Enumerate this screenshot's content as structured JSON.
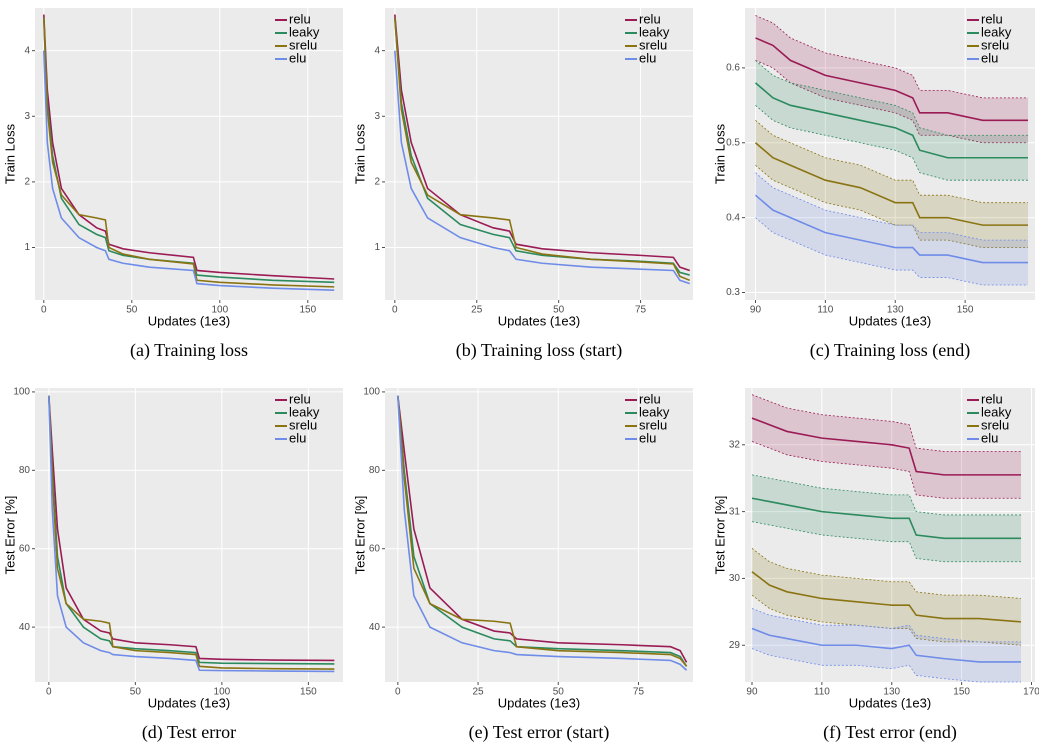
{
  "chart_data": [
    {
      "type": "line",
      "caption": "(a) Training loss",
      "xlabel": "Updates (1e3)",
      "ylabel": "Train Loss",
      "grid": true,
      "legend": "top-right",
      "x": [
        0,
        2,
        5,
        10,
        20,
        30,
        35,
        37,
        45,
        60,
        85,
        87,
        100,
        130,
        165
      ],
      "xlim": [
        -5,
        170
      ],
      "xticks": [
        0,
        50,
        100,
        150
      ],
      "ylim": [
        0.2,
        4.65
      ],
      "yticks": [
        1,
        2,
        3,
        4
      ],
      "series": [
        {
          "name": "relu",
          "color": "#9b1b55",
          "values": [
            4.55,
            3.4,
            2.6,
            1.9,
            1.5,
            1.3,
            1.25,
            1.05,
            0.98,
            0.92,
            0.85,
            0.65,
            0.62,
            0.57,
            0.52
          ]
        },
        {
          "name": "leaky",
          "color": "#2b8a5e",
          "values": [
            4.5,
            3.2,
            2.4,
            1.75,
            1.35,
            1.2,
            1.15,
            0.95,
            0.88,
            0.82,
            0.76,
            0.58,
            0.55,
            0.5,
            0.47
          ]
        },
        {
          "name": "srelu",
          "color": "#8a7412",
          "values": [
            4.5,
            3.1,
            2.3,
            1.8,
            1.5,
            1.45,
            1.42,
            1.0,
            0.9,
            0.82,
            0.75,
            0.5,
            0.47,
            0.43,
            0.4
          ]
        },
        {
          "name": "elu",
          "color": "#6e8ce8",
          "values": [
            4.0,
            2.6,
            1.9,
            1.45,
            1.15,
            1.0,
            0.95,
            0.82,
            0.76,
            0.7,
            0.65,
            0.45,
            0.42,
            0.38,
            0.35
          ]
        }
      ]
    },
    {
      "type": "line",
      "caption": "(b) Training loss (start)",
      "xlabel": "Updates (1e3)",
      "ylabel": "Train Loss",
      "grid": true,
      "legend": "top-right",
      "x": [
        0,
        2,
        5,
        10,
        20,
        30,
        35,
        37,
        45,
        60,
        75,
        85,
        87,
        90
      ],
      "xlim": [
        -3,
        91
      ],
      "xticks": [
        0,
        25,
        50,
        75
      ],
      "ylim": [
        0.2,
        4.65
      ],
      "yticks": [
        1,
        2,
        3,
        4
      ],
      "series": [
        {
          "name": "relu",
          "color": "#9b1b55",
          "values": [
            4.55,
            3.4,
            2.6,
            1.9,
            1.5,
            1.3,
            1.25,
            1.05,
            0.98,
            0.92,
            0.88,
            0.85,
            0.7,
            0.65
          ]
        },
        {
          "name": "leaky",
          "color": "#2b8a5e",
          "values": [
            4.5,
            3.2,
            2.4,
            1.75,
            1.35,
            1.2,
            1.15,
            0.95,
            0.88,
            0.82,
            0.79,
            0.76,
            0.62,
            0.58
          ]
        },
        {
          "name": "srelu",
          "color": "#8a7412",
          "values": [
            4.5,
            3.1,
            2.3,
            1.8,
            1.5,
            1.45,
            1.42,
            1.0,
            0.9,
            0.82,
            0.78,
            0.75,
            0.56,
            0.5
          ]
        },
        {
          "name": "elu",
          "color": "#6e8ce8",
          "values": [
            4.0,
            2.6,
            1.9,
            1.45,
            1.15,
            1.0,
            0.95,
            0.82,
            0.76,
            0.7,
            0.67,
            0.65,
            0.5,
            0.45
          ]
        }
      ]
    },
    {
      "type": "line",
      "caption": "(c) Training loss (end)",
      "xlabel": "Updates (1e3)",
      "ylabel": "Train Loss",
      "grid": true,
      "legend": "top-right",
      "x": [
        90,
        95,
        100,
        110,
        120,
        130,
        135,
        137,
        145,
        155,
        168
      ],
      "xlim": [
        87,
        170
      ],
      "xticks": [
        90,
        110,
        130,
        150
      ],
      "ylim": [
        0.29,
        0.68
      ],
      "yticks": [
        0.3,
        0.4,
        0.5,
        0.6
      ],
      "series": [
        {
          "name": "relu",
          "color": "#9b1b55",
          "values": [
            0.64,
            0.63,
            0.61,
            0.59,
            0.58,
            0.57,
            0.56,
            0.54,
            0.54,
            0.53,
            0.53
          ],
          "lower": [
            0.61,
            0.6,
            0.58,
            0.56,
            0.55,
            0.54,
            0.53,
            0.51,
            0.51,
            0.5,
            0.5
          ],
          "upper": [
            0.67,
            0.66,
            0.64,
            0.62,
            0.61,
            0.6,
            0.59,
            0.57,
            0.57,
            0.56,
            0.56
          ]
        },
        {
          "name": "leaky",
          "color": "#2b8a5e",
          "values": [
            0.58,
            0.56,
            0.55,
            0.54,
            0.53,
            0.52,
            0.51,
            0.49,
            0.48,
            0.48,
            0.48
          ],
          "lower": [
            0.55,
            0.53,
            0.52,
            0.51,
            0.5,
            0.49,
            0.48,
            0.46,
            0.45,
            0.45,
            0.45
          ],
          "upper": [
            0.61,
            0.59,
            0.58,
            0.57,
            0.56,
            0.55,
            0.54,
            0.52,
            0.51,
            0.51,
            0.51
          ]
        },
        {
          "name": "srelu",
          "color": "#8a7412",
          "values": [
            0.5,
            0.48,
            0.47,
            0.45,
            0.44,
            0.42,
            0.42,
            0.4,
            0.4,
            0.39,
            0.39
          ],
          "lower": [
            0.47,
            0.45,
            0.44,
            0.42,
            0.41,
            0.39,
            0.39,
            0.37,
            0.37,
            0.36,
            0.36
          ],
          "upper": [
            0.53,
            0.51,
            0.5,
            0.48,
            0.47,
            0.45,
            0.45,
            0.43,
            0.43,
            0.42,
            0.42
          ]
        },
        {
          "name": "elu",
          "color": "#6e8ce8",
          "values": [
            0.43,
            0.41,
            0.4,
            0.38,
            0.37,
            0.36,
            0.36,
            0.35,
            0.35,
            0.34,
            0.34
          ],
          "lower": [
            0.4,
            0.38,
            0.37,
            0.35,
            0.34,
            0.33,
            0.33,
            0.32,
            0.32,
            0.31,
            0.31
          ],
          "upper": [
            0.46,
            0.44,
            0.43,
            0.41,
            0.4,
            0.39,
            0.39,
            0.38,
            0.38,
            0.37,
            0.37
          ]
        }
      ]
    },
    {
      "type": "line",
      "caption": "(d) Test error",
      "xlabel": "Updates (1e3)",
      "ylabel": "Test Error [%]",
      "grid": true,
      "legend": "top-right",
      "x": [
        0,
        2,
        5,
        10,
        20,
        30,
        35,
        37,
        50,
        70,
        85,
        87,
        100,
        130,
        165
      ],
      "xlim": [
        -8,
        170
      ],
      "xticks": [
        0,
        50,
        100,
        150
      ],
      "ylim": [
        26,
        101
      ],
      "yticks": [
        40,
        60,
        80,
        100
      ],
      "series": [
        {
          "name": "relu",
          "color": "#9b1b55",
          "values": [
            99,
            85,
            65,
            50,
            42,
            39,
            38.5,
            37,
            36,
            35.5,
            35,
            32,
            31.8,
            31.6,
            31.5
          ]
        },
        {
          "name": "leaky",
          "color": "#2b8a5e",
          "values": [
            99,
            80,
            58,
            46,
            40,
            37,
            36.5,
            35,
            34.5,
            34,
            33.5,
            31,
            30.8,
            30.7,
            30.6
          ]
        },
        {
          "name": "srelu",
          "color": "#8a7412",
          "values": [
            99,
            78,
            55,
            46,
            42,
            41.5,
            41,
            35,
            34,
            33.5,
            33,
            30,
            29.6,
            29.4,
            29.3
          ]
        },
        {
          "name": "elu",
          "color": "#6e8ce8",
          "values": [
            99,
            70,
            48,
            40,
            36,
            34,
            33.5,
            33,
            32.5,
            32,
            31.5,
            29,
            28.9,
            28.8,
            28.7
          ]
        }
      ]
    },
    {
      "type": "line",
      "caption": "(e) Test error (start)",
      "xlabel": "Updates (1e3)",
      "ylabel": "Test Error [%]",
      "grid": true,
      "legend": "top-right",
      "x": [
        0,
        2,
        5,
        10,
        20,
        30,
        35,
        37,
        50,
        70,
        85,
        88,
        90
      ],
      "xlim": [
        -4,
        92
      ],
      "xticks": [
        0,
        25,
        50,
        75
      ],
      "ylim": [
        26,
        101
      ],
      "yticks": [
        40,
        60,
        80,
        100
      ],
      "series": [
        {
          "name": "relu",
          "color": "#9b1b55",
          "values": [
            99,
            85,
            65,
            50,
            42,
            39,
            38.5,
            37,
            36,
            35.5,
            35,
            34,
            31
          ]
        },
        {
          "name": "leaky",
          "color": "#2b8a5e",
          "values": [
            99,
            80,
            58,
            46,
            40,
            37,
            36.5,
            35,
            34.5,
            34,
            33.5,
            32.5,
            30
          ]
        },
        {
          "name": "srelu",
          "color": "#8a7412",
          "values": [
            99,
            78,
            55,
            46,
            42,
            41.5,
            41,
            35,
            34,
            33.5,
            33,
            32,
            30
          ]
        },
        {
          "name": "elu",
          "color": "#6e8ce8",
          "values": [
            99,
            70,
            48,
            40,
            36,
            34,
            33.5,
            33,
            32.5,
            32,
            31.5,
            30.5,
            29
          ]
        }
      ]
    },
    {
      "type": "line",
      "caption": "(f) Test error (end)",
      "xlabel": "Updates (1e3)",
      "ylabel": "Test Error [%]",
      "grid": true,
      "legend": "top-right",
      "x": [
        90,
        95,
        100,
        110,
        120,
        130,
        135,
        137,
        145,
        155,
        167
      ],
      "xlim": [
        88,
        171
      ],
      "xticks": [
        90,
        110,
        130,
        150,
        170
      ],
      "ylim": [
        28.45,
        32.85
      ],
      "yticks": [
        29,
        30,
        31,
        32
      ],
      "series": [
        {
          "name": "relu",
          "color": "#9b1b55",
          "values": [
            32.4,
            32.3,
            32.2,
            32.1,
            32.05,
            32.0,
            31.95,
            31.6,
            31.55,
            31.55,
            31.55
          ],
          "lower": [
            32.05,
            31.95,
            31.85,
            31.75,
            31.7,
            31.65,
            31.6,
            31.25,
            31.2,
            31.2,
            31.2
          ],
          "upper": [
            32.75,
            32.65,
            32.55,
            32.45,
            32.4,
            32.35,
            32.3,
            31.95,
            31.9,
            31.9,
            31.9
          ]
        },
        {
          "name": "leaky",
          "color": "#2b8a5e",
          "values": [
            31.2,
            31.15,
            31.1,
            31.0,
            30.95,
            30.9,
            30.9,
            30.65,
            30.6,
            30.6,
            30.6
          ],
          "lower": [
            30.85,
            30.8,
            30.75,
            30.65,
            30.6,
            30.55,
            30.55,
            30.3,
            30.25,
            30.25,
            30.25
          ],
          "upper": [
            31.55,
            31.5,
            31.45,
            31.35,
            31.3,
            31.25,
            31.25,
            31.0,
            30.95,
            30.95,
            30.95
          ]
        },
        {
          "name": "srelu",
          "color": "#8a7412",
          "values": [
            30.1,
            29.9,
            29.8,
            29.7,
            29.65,
            29.6,
            29.6,
            29.45,
            29.4,
            29.4,
            29.35
          ],
          "lower": [
            29.75,
            29.55,
            29.45,
            29.35,
            29.3,
            29.25,
            29.25,
            29.1,
            29.05,
            29.05,
            29.0
          ],
          "upper": [
            30.45,
            30.25,
            30.15,
            30.05,
            30.0,
            29.95,
            29.95,
            29.8,
            29.75,
            29.75,
            29.7
          ]
        },
        {
          "name": "elu",
          "color": "#6e8ce8",
          "values": [
            29.25,
            29.15,
            29.1,
            29.0,
            29.0,
            28.95,
            29.0,
            28.85,
            28.8,
            28.75,
            28.75
          ],
          "lower": [
            28.95,
            28.85,
            28.8,
            28.7,
            28.7,
            28.65,
            28.7,
            28.55,
            28.5,
            28.45,
            28.45
          ],
          "upper": [
            29.55,
            29.45,
            29.4,
            29.3,
            29.3,
            29.25,
            29.3,
            29.15,
            29.1,
            29.05,
            29.05
          ]
        }
      ]
    }
  ]
}
